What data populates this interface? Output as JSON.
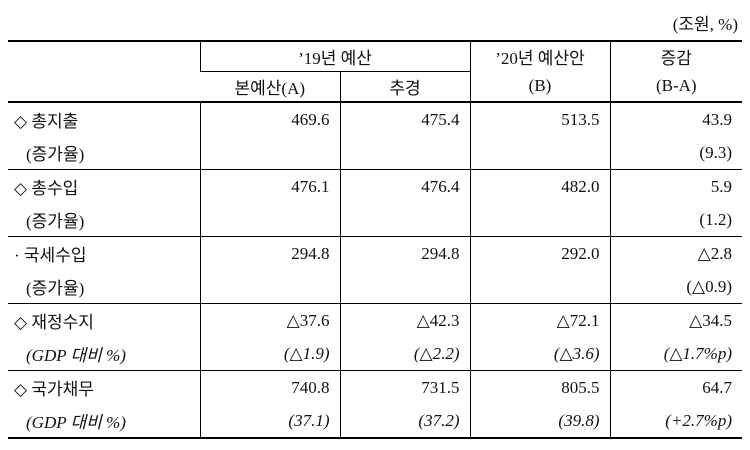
{
  "unit": "(조원, %)",
  "header": {
    "row1": [
      "’19년 예산",
      "’20년 예산안",
      "증감"
    ],
    "row2": [
      "본예산(A)",
      "추경",
      "(B)",
      "(B-A)"
    ]
  },
  "groups": [
    {
      "rows": [
        {
          "label": "◇ 총지출",
          "cells": [
            "469.6",
            "475.4",
            "513.5",
            "43.9"
          ]
        },
        {
          "label": "(증가율)",
          "cells": [
            null,
            null,
            null,
            "(9.3)"
          ]
        }
      ]
    },
    {
      "rows": [
        {
          "label": "◇ 총수입",
          "cells": [
            "476.1",
            "476.4",
            "482.0",
            "5.9"
          ]
        },
        {
          "label": "(증가율)",
          "cells": [
            null,
            null,
            null,
            "(1.2)"
          ]
        }
      ]
    },
    {
      "rows": [
        {
          "label": "· 국세수입",
          "cells": [
            "294.8",
            "294.8",
            "292.0",
            "△2.8"
          ]
        },
        {
          "label": "(증가율)",
          "cells": [
            null,
            null,
            null,
            "(△0.9)"
          ]
        }
      ]
    },
    {
      "rows": [
        {
          "label": "◇ 재정수지",
          "cells": [
            "△37.6",
            "△42.3",
            "△72.1",
            "△34.5"
          ]
        },
        {
          "label": "(GDP 대비 %)",
          "cells": [
            "(△1.9)",
            "(△2.2)",
            "(△3.6)",
            "(△1.7%p)"
          ]
        }
      ]
    },
    {
      "rows": [
        {
          "label": "◇ 국가채무",
          "cells": [
            "740.8",
            "731.5",
            "805.5",
            "64.7"
          ]
        },
        {
          "label": "(GDP 대비 %)",
          "cells": [
            "(37.1)",
            "(37.2)",
            "(39.8)",
            "(+2.7%p)"
          ]
        }
      ]
    }
  ]
}
